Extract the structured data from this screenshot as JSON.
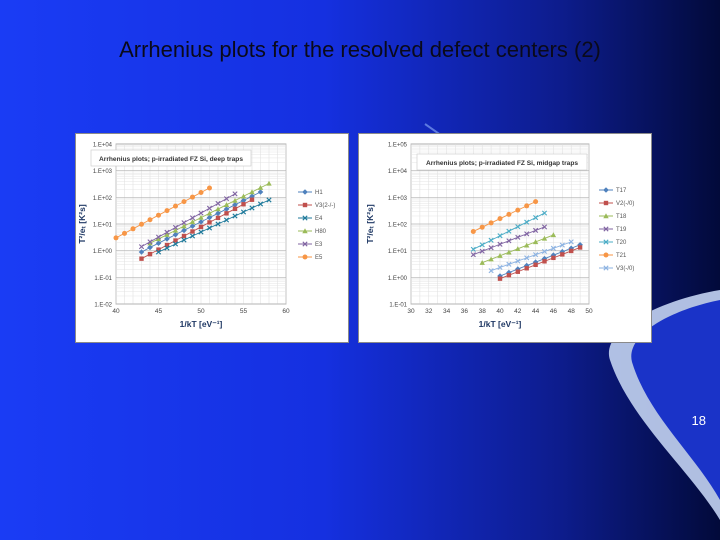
{
  "slide": {
    "title": "Arrhenius plots for the resolved defect centers (2)",
    "page_number": "18",
    "colors": {
      "background_left": "#1a3cf5",
      "background_right": "#020a3a",
      "swoosh": "#b9c9ea"
    }
  },
  "chart_data": [
    {
      "type": "scatter",
      "title": "Arrhenius plots; p-irradiated FZ Si, deep traps",
      "xlabel": "1/kT [eV⁻¹]",
      "ylabel": "T²/eₜ [K²s]",
      "xlim": [
        40,
        60
      ],
      "ylim_log10": [
        -2,
        4
      ],
      "x_ticks": [
        "40",
        "45",
        "50",
        "55",
        "60"
      ],
      "y_ticks": [
        "1.E-02",
        "1.E-01",
        "1.E+00",
        "1.E+01",
        "1.E+02",
        "1.E+03",
        "1.E+04"
      ],
      "grid": true,
      "log_scale_y": true,
      "legend_position": "right",
      "series": [
        {
          "name": "H1",
          "color": "#4f81bd",
          "marker": "diamond",
          "x": [
            43,
            44,
            45,
            46,
            47,
            48,
            49,
            50,
            51,
            52,
            53,
            54,
            55,
            56,
            57
          ],
          "log10_y": [
            -0.05,
            0.12,
            0.28,
            0.44,
            0.6,
            0.76,
            0.92,
            1.08,
            1.24,
            1.4,
            1.56,
            1.72,
            1.88,
            2.04,
            2.2
          ]
        },
        {
          "name": "V3(2-/-)",
          "color": "#c0504d",
          "marker": "square",
          "x": [
            43,
            44,
            45,
            46,
            47,
            48,
            49,
            50,
            51,
            52,
            53,
            54,
            55,
            56
          ],
          "log10_y": [
            -0.3,
            -0.13,
            0.04,
            0.21,
            0.38,
            0.55,
            0.72,
            0.89,
            1.06,
            1.23,
            1.4,
            1.57,
            1.74,
            1.91
          ]
        },
        {
          "name": "E4",
          "color": "#1f7a9b",
          "marker": "x",
          "x": [
            45,
            46,
            47,
            48,
            49,
            50,
            51,
            52,
            53,
            54,
            55,
            56,
            57,
            58
          ],
          "log10_y": [
            -0.05,
            0.1,
            0.25,
            0.4,
            0.55,
            0.7,
            0.85,
            1.0,
            1.15,
            1.3,
            1.45,
            1.6,
            1.75,
            1.9
          ]
        },
        {
          "name": "H80",
          "color": "#9bbb59",
          "marker": "triangle",
          "x": [
            44,
            45,
            46,
            47,
            48,
            49,
            50,
            51,
            52,
            53,
            54,
            55,
            56,
            57,
            58
          ],
          "log10_y": [
            0.28,
            0.44,
            0.6,
            0.76,
            0.92,
            1.08,
            1.24,
            1.4,
            1.56,
            1.72,
            1.88,
            2.04,
            2.2,
            2.36,
            2.52
          ]
        },
        {
          "name": "E3",
          "color": "#8064a2",
          "marker": "x",
          "x": [
            43,
            44,
            45,
            46,
            47,
            48,
            49,
            50,
            51,
            52,
            53,
            54
          ],
          "log10_y": [
            0.15,
            0.33,
            0.51,
            0.69,
            0.87,
            1.05,
            1.23,
            1.41,
            1.59,
            1.77,
            1.95,
            2.13
          ]
        },
        {
          "name": "E5",
          "color": "#f79646",
          "marker": "circle",
          "x": [
            40,
            41,
            42,
            43,
            44,
            45,
            46,
            47,
            48,
            49,
            50,
            51
          ],
          "log10_y": [
            0.48,
            0.65,
            0.82,
            0.99,
            1.16,
            1.33,
            1.5,
            1.67,
            1.84,
            2.01,
            2.18,
            2.35
          ]
        }
      ]
    },
    {
      "type": "scatter",
      "title": "Arrhenius plots; p-irradiated FZ Si, midgap traps",
      "xlabel": "1/kT [eV⁻¹]",
      "ylabel": "T²/eₜ [K²s]",
      "xlim": [
        30,
        50
      ],
      "ylim_log10": [
        -1,
        5
      ],
      "x_ticks": [
        "30",
        "32",
        "34",
        "36",
        "38",
        "40",
        "42",
        "44",
        "46",
        "48",
        "50"
      ],
      "y_ticks": [
        "1.E-01",
        "1.E+00",
        "1.E+01",
        "1.E+02",
        "1.E+03",
        "1.E+04",
        "1.E+05"
      ],
      "grid": true,
      "log_scale_y": true,
      "legend_position": "right",
      "series": [
        {
          "name": "T17",
          "color": "#4f81bd",
          "marker": "diamond",
          "x": [
            40,
            41,
            42,
            43,
            44,
            45,
            46,
            47,
            48,
            49
          ],
          "log10_y": [
            0.05,
            0.18,
            0.31,
            0.44,
            0.57,
            0.7,
            0.83,
            0.96,
            1.09,
            1.22
          ]
        },
        {
          "name": "V2(-/0)",
          "color": "#c0504d",
          "marker": "square",
          "x": [
            40,
            41,
            42,
            43,
            44,
            45,
            46,
            47,
            48,
            49
          ],
          "log10_y": [
            -0.05,
            0.08,
            0.21,
            0.34,
            0.47,
            0.6,
            0.73,
            0.86,
            0.99,
            1.12
          ]
        },
        {
          "name": "T18",
          "color": "#9bbb59",
          "marker": "triangle",
          "x": [
            38,
            39,
            40,
            41,
            42,
            43,
            44,
            45,
            46
          ],
          "log10_y": [
            0.55,
            0.68,
            0.81,
            0.94,
            1.07,
            1.2,
            1.33,
            1.46,
            1.59
          ]
        },
        {
          "name": "T19",
          "color": "#8064a2",
          "marker": "x",
          "x": [
            37,
            38,
            39,
            40,
            41,
            42,
            43,
            44,
            45
          ],
          "log10_y": [
            0.85,
            0.98,
            1.11,
            1.24,
            1.37,
            1.5,
            1.63,
            1.76,
            1.89
          ]
        },
        {
          "name": "T20",
          "color": "#4bacc6",
          "marker": "x",
          "x": [
            37,
            38,
            39,
            40,
            41,
            42,
            43,
            44,
            45
          ],
          "log10_y": [
            1.05,
            1.22,
            1.39,
            1.56,
            1.73,
            1.9,
            2.07,
            2.24,
            2.41
          ]
        },
        {
          "name": "T21",
          "color": "#f79646",
          "marker": "circle",
          "x": [
            37,
            38,
            39,
            40,
            41,
            42,
            43,
            44
          ],
          "log10_y": [
            1.72,
            1.88,
            2.04,
            2.2,
            2.36,
            2.52,
            2.68,
            2.84
          ]
        },
        {
          "name": "V3(-/0)",
          "color": "#8db3e2",
          "marker": "x",
          "x": [
            39,
            40,
            41,
            42,
            43,
            44,
            45,
            46,
            47,
            48
          ],
          "log10_y": [
            0.25,
            0.37,
            0.49,
            0.61,
            0.73,
            0.85,
            0.97,
            1.09,
            1.21,
            1.33
          ]
        }
      ]
    }
  ]
}
